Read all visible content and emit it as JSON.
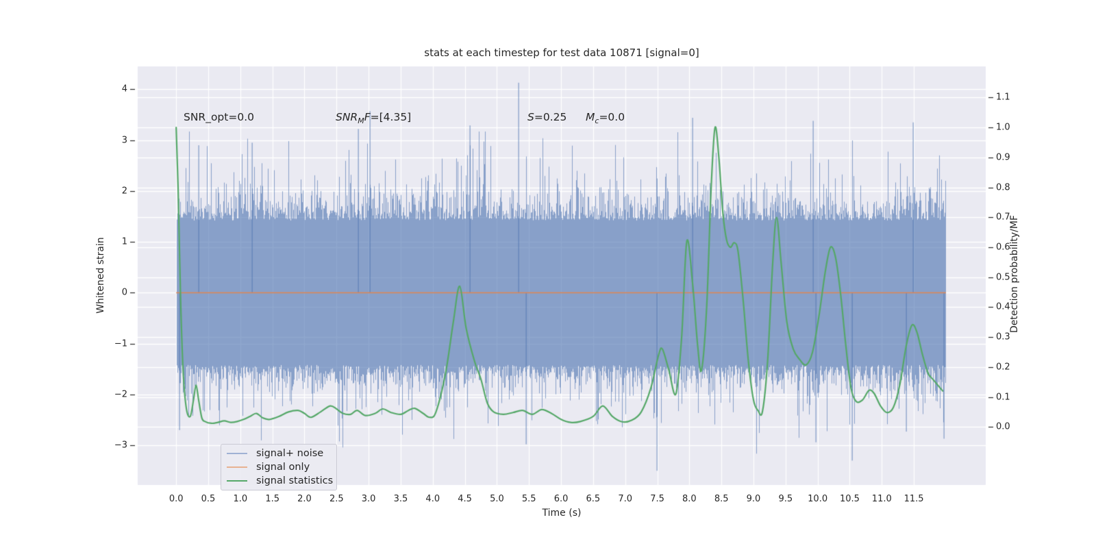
{
  "title": "stats at each timestep for test data 10871 [signal=0]",
  "annotations": {
    "snr_opt": {
      "text": "SNR_opt=0.0"
    },
    "snr_mf": {
      "pre": "SNR",
      "sub": "M",
      "mid": "F",
      "post": "=[4.35]"
    },
    "s": {
      "pre": "S",
      "post": "=0.25"
    },
    "mc": {
      "pre": "M",
      "sub": "c",
      "post": "=0.0"
    }
  },
  "axes": {
    "x": {
      "label": "Time (s)",
      "tick_values": [
        0,
        0.5,
        1,
        1.5,
        2,
        2.5,
        3,
        3.5,
        4,
        4.5,
        5,
        5.5,
        6,
        6.5,
        7,
        7.5,
        8,
        8.5,
        9,
        9.5,
        10,
        10.5,
        11,
        11.5
      ],
      "tick_labels": [
        "0.0",
        "0.5",
        "1.0",
        "1.5",
        "2.0",
        "2.5",
        "3.0",
        "3.5",
        "4.0",
        "4.5",
        "5.0",
        "5.5",
        "6.0",
        "6.5",
        "7.0",
        "7.5",
        "8.0",
        "8.5",
        "9.0",
        "9.5",
        "10.0",
        "10.5",
        "11.0",
        "11.5"
      ],
      "lim": [
        -0.6,
        12.62
      ]
    },
    "y_left": {
      "label": "Whitened strain",
      "tick_values": [
        4,
        3,
        2,
        1,
        0,
        -1,
        -2,
        -3
      ],
      "tick_labels": [
        "4",
        "3",
        "2",
        "1",
        "0",
        "−1",
        "−2",
        "−3"
      ],
      "lim": [
        -3.78,
        4.45
      ]
    },
    "y_right": {
      "label": "Detection probability/MF",
      "tick_values": [
        1.1,
        1.0,
        0.9,
        0.8,
        0.7,
        0.6,
        0.5,
        0.4,
        0.3,
        0.2,
        0.1,
        0.0
      ],
      "tick_labels": [
        "1.1",
        "1.0",
        "0.9",
        "0.8",
        "0.7",
        "0.6",
        "0.5",
        "0.4",
        "0.3",
        "0.2",
        "0.1",
        "0.0"
      ],
      "lim": [
        -0.194,
        1.204
      ]
    }
  },
  "legend": {
    "items": [
      {
        "label": "signal+ noise",
        "color": "#9FB1D4"
      },
      {
        "label": "signal only",
        "color": "#E8B190"
      },
      {
        "label": "signal statistics",
        "color": "#55A868"
      }
    ]
  },
  "colors": {
    "plot_bg": "#eaeaf2",
    "grid": "#ffffff",
    "noise": "rgba(76,114,176,0.62)",
    "signal": "rgba(221,132,82,0.9)",
    "statistic": "#55A868",
    "text": "#262626"
  },
  "chart_data": {
    "type": "line",
    "xlabel": "Time (s)",
    "ylabel_left": "Whitened strain",
    "ylabel_right": "Detection probability/MF",
    "series": [
      {
        "name": "signal+ noise",
        "axis": "left",
        "style": "noise-band",
        "t_range": [
          0,
          12.0
        ],
        "core_band": [
          -1.42,
          1.42
        ],
        "noise_scale": 0.3,
        "seed": 20871,
        "outliers": [
          [
            0.05,
            -2.7
          ],
          [
            0.35,
            2.9
          ],
          [
            1.18,
            2.95
          ],
          [
            2.84,
            3.22
          ],
          [
            3.02,
            3.57
          ],
          [
            4.58,
            3.29
          ],
          [
            5.34,
            4.13
          ],
          [
            5.45,
            -2.98
          ],
          [
            7.49,
            -3.5
          ],
          [
            8.05,
            3.44
          ],
          [
            9.93,
            3.38
          ],
          [
            9.97,
            -2.94
          ],
          [
            10.54,
            -3.3
          ],
          [
            11.38,
            -2.73
          ],
          [
            11.49,
            3.35
          ],
          [
            11.97,
            -2.87
          ]
        ]
      },
      {
        "name": "signal only",
        "axis": "left",
        "style": "hline",
        "value": 0.0,
        "t_range": [
          0,
          12.0
        ]
      },
      {
        "name": "signal statistics",
        "axis": "right",
        "style": "line",
        "points": [
          [
            0.0,
            1.0
          ],
          [
            0.03,
            0.8
          ],
          [
            0.07,
            0.42
          ],
          [
            0.11,
            0.18
          ],
          [
            0.16,
            0.06
          ],
          [
            0.22,
            0.035
          ],
          [
            0.27,
            0.09
          ],
          [
            0.31,
            0.14
          ],
          [
            0.35,
            0.09
          ],
          [
            0.4,
            0.03
          ],
          [
            0.45,
            0.018
          ],
          [
            0.55,
            0.012
          ],
          [
            0.65,
            0.015
          ],
          [
            0.75,
            0.02
          ],
          [
            0.85,
            0.015
          ],
          [
            0.95,
            0.018
          ],
          [
            1.05,
            0.025
          ],
          [
            1.15,
            0.035
          ],
          [
            1.25,
            0.045
          ],
          [
            1.35,
            0.03
          ],
          [
            1.45,
            0.025
          ],
          [
            1.6,
            0.035
          ],
          [
            1.75,
            0.05
          ],
          [
            1.9,
            0.055
          ],
          [
            2.0,
            0.045
          ],
          [
            2.1,
            0.032
          ],
          [
            2.25,
            0.05
          ],
          [
            2.4,
            0.07
          ],
          [
            2.5,
            0.06
          ],
          [
            2.6,
            0.045
          ],
          [
            2.72,
            0.042
          ],
          [
            2.82,
            0.055
          ],
          [
            2.95,
            0.038
          ],
          [
            3.1,
            0.045
          ],
          [
            3.22,
            0.06
          ],
          [
            3.35,
            0.048
          ],
          [
            3.5,
            0.042
          ],
          [
            3.62,
            0.055
          ],
          [
            3.72,
            0.062
          ],
          [
            3.85,
            0.045
          ],
          [
            3.95,
            0.032
          ],
          [
            4.05,
            0.05
          ],
          [
            4.2,
            0.18
          ],
          [
            4.32,
            0.35
          ],
          [
            4.42,
            0.47
          ],
          [
            4.52,
            0.33
          ],
          [
            4.65,
            0.22
          ],
          [
            4.75,
            0.16
          ],
          [
            4.85,
            0.08
          ],
          [
            4.95,
            0.05
          ],
          [
            5.1,
            0.042
          ],
          [
            5.25,
            0.048
          ],
          [
            5.4,
            0.055
          ],
          [
            5.55,
            0.042
          ],
          [
            5.7,
            0.058
          ],
          [
            5.85,
            0.045
          ],
          [
            6.0,
            0.025
          ],
          [
            6.15,
            0.015
          ],
          [
            6.3,
            0.018
          ],
          [
            6.5,
            0.035
          ],
          [
            6.65,
            0.07
          ],
          [
            6.8,
            0.035
          ],
          [
            6.95,
            0.017
          ],
          [
            7.1,
            0.022
          ],
          [
            7.25,
            0.05
          ],
          [
            7.4,
            0.13
          ],
          [
            7.52,
            0.24
          ],
          [
            7.58,
            0.26
          ],
          [
            7.68,
            0.19
          ],
          [
            7.79,
            0.11
          ],
          [
            7.88,
            0.3
          ],
          [
            7.96,
            0.62
          ],
          [
            8.05,
            0.48
          ],
          [
            8.13,
            0.27
          ],
          [
            8.19,
            0.19
          ],
          [
            8.27,
            0.4
          ],
          [
            8.34,
            0.8
          ],
          [
            8.4,
            1.0
          ],
          [
            8.46,
            0.9
          ],
          [
            8.52,
            0.72
          ],
          [
            8.58,
            0.625
          ],
          [
            8.64,
            0.6
          ],
          [
            8.7,
            0.615
          ],
          [
            8.76,
            0.585
          ],
          [
            8.84,
            0.42
          ],
          [
            8.92,
            0.22
          ],
          [
            9.0,
            0.09
          ],
          [
            9.07,
            0.055
          ],
          [
            9.14,
            0.052
          ],
          [
            9.22,
            0.22
          ],
          [
            9.3,
            0.55
          ],
          [
            9.36,
            0.7
          ],
          [
            9.43,
            0.55
          ],
          [
            9.52,
            0.35
          ],
          [
            9.62,
            0.26
          ],
          [
            9.72,
            0.225
          ],
          [
            9.82,
            0.207
          ],
          [
            9.92,
            0.25
          ],
          [
            10.02,
            0.37
          ],
          [
            10.12,
            0.52
          ],
          [
            10.2,
            0.6
          ],
          [
            10.28,
            0.565
          ],
          [
            10.36,
            0.44
          ],
          [
            10.44,
            0.27
          ],
          [
            10.52,
            0.13
          ],
          [
            10.6,
            0.085
          ],
          [
            10.7,
            0.09
          ],
          [
            10.8,
            0.122
          ],
          [
            10.88,
            0.112
          ],
          [
            10.98,
            0.07
          ],
          [
            11.08,
            0.048
          ],
          [
            11.18,
            0.065
          ],
          [
            11.28,
            0.14
          ],
          [
            11.38,
            0.27
          ],
          [
            11.47,
            0.34
          ],
          [
            11.55,
            0.315
          ],
          [
            11.63,
            0.245
          ],
          [
            11.72,
            0.18
          ],
          [
            11.8,
            0.158
          ],
          [
            11.95,
            0.12
          ]
        ]
      }
    ]
  }
}
